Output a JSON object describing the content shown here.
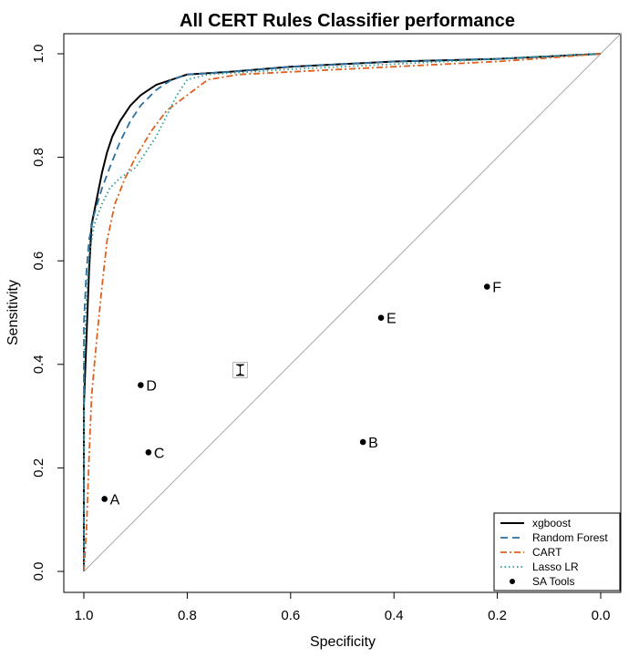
{
  "chart_data": {
    "type": "line",
    "title": "All CERT Rules Classifier performance",
    "xlabel": "Specificity",
    "ylabel": "Sensitivity",
    "xlim": [
      1.0,
      0.0
    ],
    "ylim": [
      0.0,
      1.0
    ],
    "x_ticks": [
      "1.0",
      "0.8",
      "0.6",
      "0.4",
      "0.2",
      "0.0"
    ],
    "y_ticks": [
      "0.0",
      "0.2",
      "0.4",
      "0.6",
      "0.8",
      "1.0"
    ],
    "grid": false,
    "legend_position": "bottom-right",
    "diagonal": true,
    "series": [
      {
        "name": "xgboost",
        "style": "solid",
        "color": "#000000",
        "points": [
          [
            1.0,
            0.0
          ],
          [
            1.0,
            0.32
          ],
          [
            0.995,
            0.45
          ],
          [
            0.99,
            0.58
          ],
          [
            0.985,
            0.67
          ],
          [
            0.975,
            0.72
          ],
          [
            0.965,
            0.77
          ],
          [
            0.955,
            0.81
          ],
          [
            0.945,
            0.84
          ],
          [
            0.93,
            0.87
          ],
          [
            0.91,
            0.9
          ],
          [
            0.89,
            0.92
          ],
          [
            0.86,
            0.94
          ],
          [
            0.83,
            0.95
          ],
          [
            0.8,
            0.96
          ],
          [
            0.72,
            0.965
          ],
          [
            0.6,
            0.975
          ],
          [
            0.4,
            0.985
          ],
          [
            0.2,
            0.99
          ],
          [
            0.1,
            0.995
          ],
          [
            0.0,
            1.0
          ]
        ]
      },
      {
        "name": "Random Forest",
        "style": "dashed",
        "color": "#2c6fa1",
        "points": [
          [
            1.0,
            0.0
          ],
          [
            1.0,
            0.48
          ],
          [
            0.995,
            0.58
          ],
          [
            0.99,
            0.64
          ],
          [
            0.98,
            0.69
          ],
          [
            0.965,
            0.74
          ],
          [
            0.95,
            0.78
          ],
          [
            0.93,
            0.83
          ],
          [
            0.91,
            0.87
          ],
          [
            0.89,
            0.9
          ],
          [
            0.86,
            0.93
          ],
          [
            0.83,
            0.95
          ],
          [
            0.8,
            0.96
          ],
          [
            0.72,
            0.965
          ],
          [
            0.6,
            0.975
          ],
          [
            0.4,
            0.985
          ],
          [
            0.2,
            0.99
          ],
          [
            0.1,
            0.995
          ],
          [
            0.0,
            1.0
          ]
        ]
      },
      {
        "name": "CART",
        "style": "dotdash",
        "color": "#e0601f",
        "points": [
          [
            1.0,
            0.0
          ],
          [
            0.995,
            0.08
          ],
          [
            0.99,
            0.22
          ],
          [
            0.985,
            0.34
          ],
          [
            0.975,
            0.45
          ],
          [
            0.965,
            0.55
          ],
          [
            0.955,
            0.64
          ],
          [
            0.94,
            0.71
          ],
          [
            0.92,
            0.76
          ],
          [
            0.9,
            0.8
          ],
          [
            0.87,
            0.85
          ],
          [
            0.84,
            0.89
          ],
          [
            0.8,
            0.92
          ],
          [
            0.76,
            0.95
          ],
          [
            0.7,
            0.96
          ],
          [
            0.6,
            0.965
          ],
          [
            0.4,
            0.975
          ],
          [
            0.2,
            0.985
          ],
          [
            0.1,
            0.992
          ],
          [
            0.0,
            1.0
          ]
        ]
      },
      {
        "name": "Lasso LR",
        "style": "dotted",
        "color": "#2e9b92",
        "points": [
          [
            1.0,
            0.0
          ],
          [
            1.0,
            0.4
          ],
          [
            0.995,
            0.53
          ],
          [
            0.99,
            0.61
          ],
          [
            0.98,
            0.67
          ],
          [
            0.965,
            0.71
          ],
          [
            0.95,
            0.74
          ],
          [
            0.93,
            0.76
          ],
          [
            0.9,
            0.78
          ],
          [
            0.88,
            0.81
          ],
          [
            0.86,
            0.84
          ],
          [
            0.84,
            0.88
          ],
          [
            0.82,
            0.92
          ],
          [
            0.8,
            0.95
          ],
          [
            0.76,
            0.96
          ],
          [
            0.6,
            0.97
          ],
          [
            0.4,
            0.98
          ],
          [
            0.2,
            0.99
          ],
          [
            0.1,
            0.995
          ],
          [
            0.0,
            1.0
          ]
        ]
      }
    ],
    "points_series": {
      "name": "SA Tools",
      "color": "#000000",
      "points": [
        {
          "label": "A",
          "x": 0.96,
          "y": 0.14
        },
        {
          "label": "B",
          "x": 0.46,
          "y": 0.25
        },
        {
          "label": "C",
          "x": 0.875,
          "y": 0.23
        },
        {
          "label": "D",
          "x": 0.89,
          "y": 0.36
        },
        {
          "label": "E",
          "x": 0.425,
          "y": 0.49
        },
        {
          "label": "F",
          "x": 0.22,
          "y": 0.55
        }
      ]
    }
  },
  "icons": {
    "cursor": "i-beam-cursor-icon"
  }
}
